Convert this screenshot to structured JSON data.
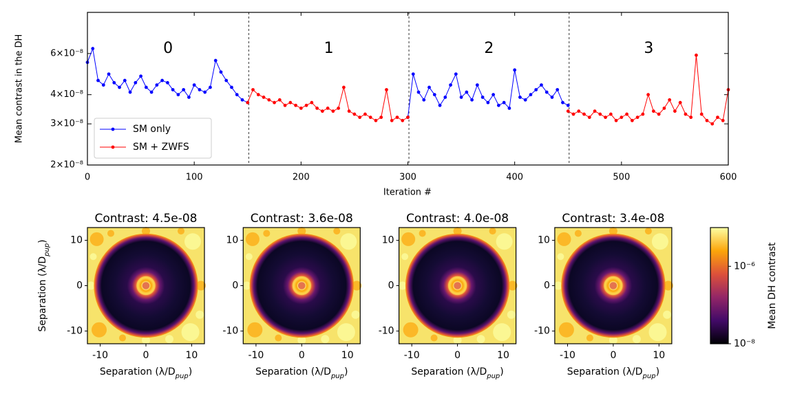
{
  "chart_data": [
    {
      "type": "line",
      "ylabel": "Mean contrast in the DH",
      "xlabel": "Iteration #",
      "log_y": true,
      "legend": "lower left",
      "xlim": [
        0,
        600
      ],
      "xticks": [
        0,
        100,
        200,
        300,
        400,
        500,
        600
      ],
      "ylim": [
        2e-08,
        9e-08
      ],
      "yticks": [
        {
          "value": 2e-08,
          "label": "2×10⁻⁸"
        },
        {
          "value": 3e-08,
          "label": "3×10⁻⁸"
        },
        {
          "value": 4e-08,
          "label": "4×10⁻⁸"
        },
        {
          "value": 6e-08,
          "label": "6×10⁻⁸"
        }
      ],
      "phase_boundaries": [
        151,
        301,
        451
      ],
      "annotations": [
        "0",
        "1",
        "2",
        "3"
      ],
      "x": [
        0,
        5,
        10,
        15,
        20,
        25,
        30,
        35,
        40,
        45,
        50,
        55,
        60,
        65,
        70,
        75,
        80,
        85,
        90,
        95,
        100,
        105,
        110,
        115,
        120,
        125,
        130,
        135,
        140,
        145,
        150,
        155,
        160,
        165,
        170,
        175,
        180,
        185,
        190,
        195,
        200,
        205,
        210,
        215,
        220,
        225,
        230,
        235,
        240,
        245,
        250,
        255,
        260,
        265,
        270,
        275,
        280,
        285,
        290,
        295,
        300,
        305,
        310,
        315,
        320,
        325,
        330,
        335,
        340,
        345,
        350,
        355,
        360,
        365,
        370,
        375,
        380,
        385,
        390,
        395,
        400,
        405,
        410,
        415,
        420,
        425,
        430,
        435,
        440,
        445,
        450,
        455,
        460,
        465,
        470,
        475,
        480,
        485,
        490,
        495,
        500,
        505,
        510,
        515,
        520,
        525,
        530,
        535,
        540,
        545,
        550,
        555,
        560,
        565,
        570,
        575,
        580,
        585,
        590,
        595,
        600
      ],
      "series": [
        {
          "name": "SM only",
          "color": "#0000ff",
          "values": [
            5.5e-08,
            6.3e-08,
            4.6e-08,
            4.4e-08,
            4.9e-08,
            4.5e-08,
            4.3e-08,
            4.6e-08,
            4.1e-08,
            4.5e-08,
            4.8e-08,
            4.3e-08,
            4.1e-08,
            4.4e-08,
            4.6e-08,
            4.5e-08,
            4.2e-08,
            4e-08,
            4.2e-08,
            3.9e-08,
            4.4e-08,
            4.2e-08,
            4.1e-08,
            4.3e-08,
            5.6e-08,
            5e-08,
            4.6e-08,
            4.3e-08,
            4e-08,
            3.8e-08,
            3.7e-08,
            null,
            null,
            null,
            null,
            null,
            null,
            null,
            null,
            null,
            null,
            null,
            null,
            null,
            null,
            null,
            null,
            null,
            null,
            null,
            null,
            null,
            null,
            null,
            null,
            null,
            null,
            null,
            null,
            null,
            3.2e-08,
            4.9e-08,
            4.1e-08,
            3.8e-08,
            4.3e-08,
            4e-08,
            3.6e-08,
            3.9e-08,
            4.4e-08,
            4.9e-08,
            3.9e-08,
            4.1e-08,
            3.8e-08,
            4.4e-08,
            3.9e-08,
            3.7e-08,
            4e-08,
            3.6e-08,
            3.7e-08,
            3.5e-08,
            5.1e-08,
            3.9e-08,
            3.8e-08,
            4e-08,
            4.2e-08,
            4.4e-08,
            4.1e-08,
            3.9e-08,
            4.2e-08,
            3.7e-08,
            3.6e-08,
            null,
            null,
            null,
            null,
            null,
            null,
            null,
            null,
            null,
            null,
            null,
            null,
            null,
            null,
            null,
            null,
            null,
            null,
            null,
            null,
            null,
            null,
            null,
            null,
            null,
            null,
            null,
            null,
            null,
            null
          ]
        },
        {
          "name": "SM + ZWFS",
          "color": "#ff0000",
          "values": [
            null,
            null,
            null,
            null,
            null,
            null,
            null,
            null,
            null,
            null,
            null,
            null,
            null,
            null,
            null,
            null,
            null,
            null,
            null,
            null,
            null,
            null,
            null,
            null,
            null,
            null,
            null,
            null,
            null,
            null,
            3.7e-08,
            4.2e-08,
            4e-08,
            3.9e-08,
            3.8e-08,
            3.7e-08,
            3.8e-08,
            3.6e-08,
            3.7e-08,
            3.6e-08,
            3.5e-08,
            3.6e-08,
            3.7e-08,
            3.5e-08,
            3.4e-08,
            3.5e-08,
            3.4e-08,
            3.5e-08,
            4.3e-08,
            3.4e-08,
            3.3e-08,
            3.2e-08,
            3.3e-08,
            3.2e-08,
            3.1e-08,
            3.2e-08,
            4.2e-08,
            3.1e-08,
            3.2e-08,
            3.1e-08,
            3.2e-08,
            null,
            null,
            null,
            null,
            null,
            null,
            null,
            null,
            null,
            null,
            null,
            null,
            null,
            null,
            null,
            null,
            null,
            null,
            null,
            null,
            null,
            null,
            null,
            null,
            null,
            null,
            null,
            null,
            null,
            3.4e-08,
            3.3e-08,
            3.4e-08,
            3.3e-08,
            3.2e-08,
            3.4e-08,
            3.3e-08,
            3.2e-08,
            3.3e-08,
            3.1e-08,
            3.2e-08,
            3.3e-08,
            3.1e-08,
            3.2e-08,
            3.3e-08,
            4e-08,
            3.4e-08,
            3.3e-08,
            3.5e-08,
            3.8e-08,
            3.4e-08,
            3.7e-08,
            3.3e-08,
            3.2e-08,
            5.9e-08,
            3.3e-08,
            3.1e-08,
            3e-08,
            3.2e-08,
            3.1e-08,
            4.2e-08
          ]
        }
      ]
    },
    {
      "type": "image",
      "panels": [
        {
          "title": "Contrast: 4.5e-08"
        },
        {
          "title": "Contrast: 3.6e-08"
        },
        {
          "title": "Contrast: 4.0e-08"
        },
        {
          "title": "Contrast: 3.4e-08"
        }
      ],
      "xlabel": {
        "main": "Separation (λ/D",
        "sub": "pup",
        "end": ")"
      },
      "ylabel": {
        "main": "Separation (λ/D",
        "sub": "pup",
        "end": ")"
      },
      "xlim": [
        -12.8,
        12.8
      ],
      "ylim": [
        -12.8,
        12.8
      ],
      "xticks": [
        -10,
        0,
        10
      ],
      "yticks": [
        -10,
        0,
        10
      ],
      "colorbar": {
        "label": "Mean DH contrast",
        "colormap": "inferno",
        "log": true,
        "lim": [
          1e-08,
          1e-05
        ],
        "ticks": [
          {
            "value": 1e-08,
            "label": "10⁻⁸"
          },
          {
            "value": 1e-06,
            "label": "10⁻⁶"
          }
        ]
      }
    }
  ]
}
